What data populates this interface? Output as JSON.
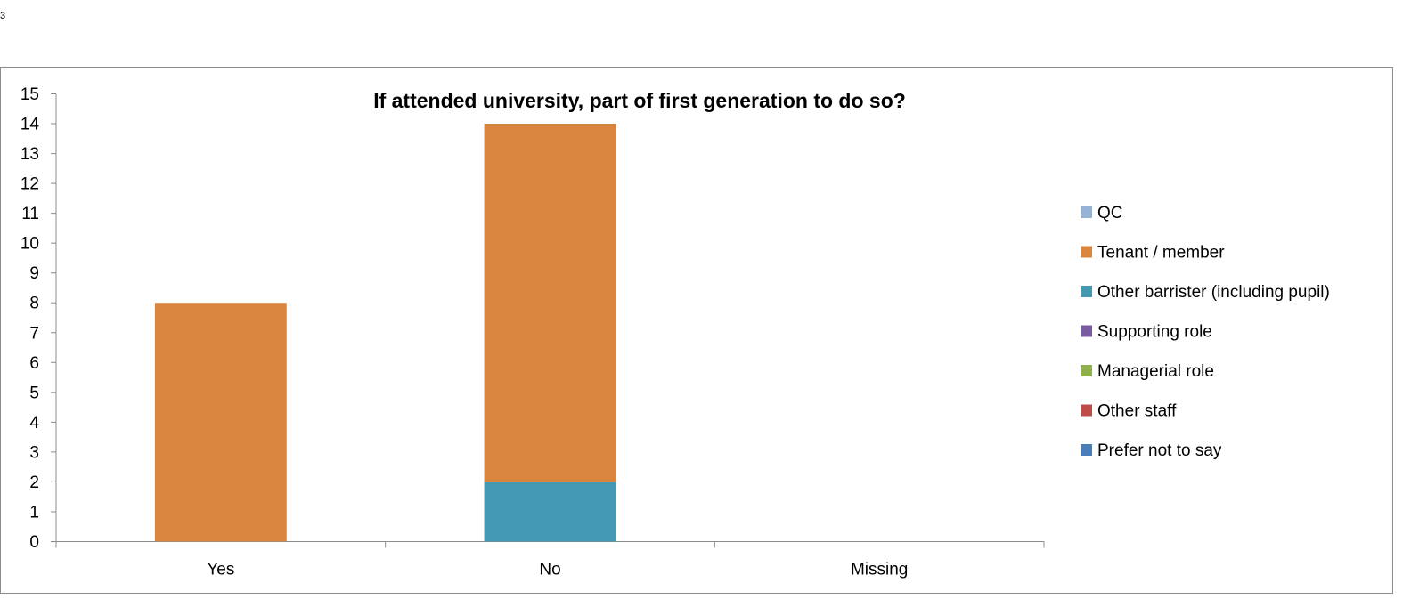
{
  "page": {
    "number": "3"
  },
  "chart_data": {
    "type": "bar",
    "stacked": true,
    "title": "If attended university, part of first generation to do so?",
    "categories": [
      "Yes",
      "No",
      "Missing"
    ],
    "ylim": [
      0,
      15
    ],
    "y_ticks": [
      "0",
      "1",
      "2",
      "3",
      "4",
      "5",
      "6",
      "7",
      "8",
      "9",
      "10",
      "11",
      "12",
      "13",
      "14",
      "15"
    ],
    "grid": false,
    "legend_position": "right",
    "series": [
      {
        "name": "QC",
        "values": [
          0,
          0,
          0
        ],
        "color": "#95b3d7"
      },
      {
        "name": "Tenant / member",
        "values": [
          8,
          12,
          0
        ],
        "color": "#d9843f"
      },
      {
        "name": "Other barrister (including pupil)",
        "values": [
          0,
          2,
          0
        ],
        "color": "#4399b1"
      },
      {
        "name": "Supporting role",
        "values": [
          0,
          0,
          0
        ],
        "color": "#7a5aa0"
      },
      {
        "name": "Managerial role",
        "values": [
          0,
          0,
          0
        ],
        "color": "#8db04a"
      },
      {
        "name": "Other staff",
        "values": [
          0,
          0,
          0
        ],
        "color": "#be4b48"
      },
      {
        "name": "Prefer not to say",
        "values": [
          0,
          0,
          0
        ],
        "color": "#4a7ebb"
      }
    ],
    "stack_order_bottom_to_top": [
      "Prefer not to say",
      "Other staff",
      "Managerial role",
      "Supporting role",
      "Other barrister (including pupil)",
      "Tenant / member",
      "QC"
    ]
  }
}
